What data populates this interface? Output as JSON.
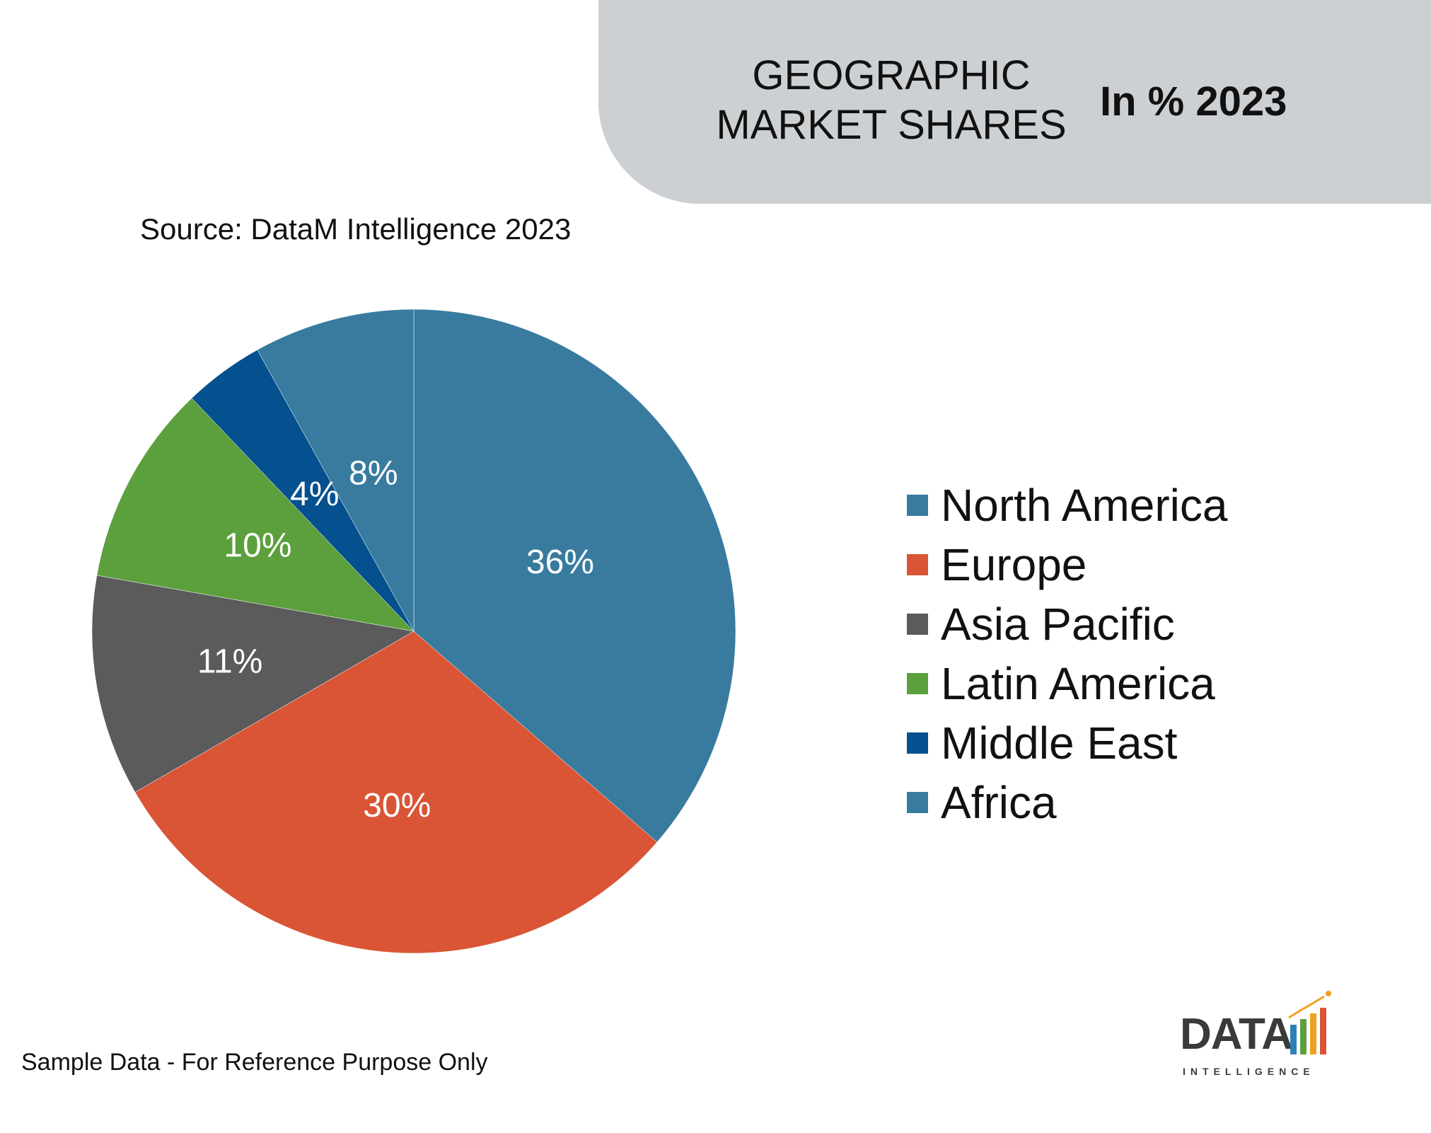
{
  "header": {
    "title_line1": "GEOGRAPHIC",
    "title_line2": "MARKET SHARES",
    "subtitle": "In % 2023"
  },
  "source_text": "Source: DataM Intelligence 2023",
  "footnote": "Sample Data - For Reference Purpose Only",
  "logo": {
    "text": "DATA",
    "subtext": "INTELLIGENCE"
  },
  "chart_data": {
    "type": "pie",
    "title": "GEOGRAPHIC MARKET SHARES",
    "subtitle": "In % 2023",
    "legend_position": "right",
    "slices": [
      {
        "label": "North America",
        "value": 36,
        "display": "36%",
        "color": "#387b9e"
      },
      {
        "label": "Europe",
        "value": 30,
        "display": "30%",
        "color": "#d95535"
      },
      {
        "label": "Asia Pacific",
        "value": 11,
        "display": "11%",
        "color": "#5b5b5b"
      },
      {
        "label": "Latin America",
        "value": 10,
        "display": "10%",
        "color": "#5ba03c"
      },
      {
        "label": "Middle East",
        "value": 4,
        "display": "4%",
        "color": "#05508e"
      },
      {
        "label": "Africa",
        "value": 8,
        "display": "8%",
        "color": "#387b9e"
      }
    ]
  }
}
